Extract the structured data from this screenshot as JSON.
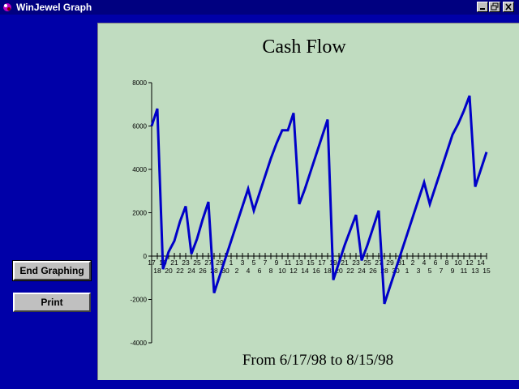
{
  "window": {
    "title": "WinJewel Graph",
    "controls": [
      "minimize",
      "restore",
      "close"
    ]
  },
  "buttons": {
    "end_graphing": "End Graphing",
    "print": "Print"
  },
  "colors": {
    "desktop": "#0000a8",
    "plot_background": "#c0dcc0",
    "line": "#0000c8"
  },
  "chart_data": {
    "type": "line",
    "title": "Cash Flow",
    "subtitle": "From 6/17/98 to 8/15/98",
    "ylim": [
      -4000,
      8000
    ],
    "yticks": [
      -4000,
      -2000,
      0,
      2000,
      4000,
      6000,
      8000
    ],
    "ytick_labels": [
      "-4000",
      "-2000",
      "0",
      "2000",
      "4000",
      "6000",
      "8000"
    ],
    "x_tick_labels": [
      "17",
      "18",
      "19",
      "20",
      "21",
      "22",
      "23",
      "24",
      "25",
      "26",
      "27",
      "28",
      "29",
      "30",
      "1",
      "2",
      "3",
      "4",
      "5",
      "6",
      "7",
      "8",
      "9",
      "10",
      "11",
      "12",
      "13",
      "14",
      "15",
      "16",
      "17",
      "18",
      "19",
      "20",
      "21",
      "22",
      "23",
      "24",
      "25",
      "26",
      "27",
      "28",
      "29",
      "30",
      "31",
      "1",
      "2",
      "3",
      "4",
      "5",
      "6",
      "7",
      "8",
      "9",
      "10",
      "11",
      "12",
      "13",
      "14",
      "15"
    ],
    "x": [
      "6/17",
      "6/18",
      "6/19",
      "6/20",
      "6/21",
      "6/22",
      "6/23",
      "6/24",
      "6/25",
      "6/26",
      "6/27",
      "6/28",
      "6/29",
      "6/30",
      "7/1",
      "7/2",
      "7/3",
      "7/4",
      "7/5",
      "7/6",
      "7/7",
      "7/8",
      "7/9",
      "7/10",
      "7/11",
      "7/12",
      "7/13",
      "7/14",
      "7/15",
      "7/16",
      "7/17",
      "7/18",
      "7/19",
      "7/20",
      "7/21",
      "7/22",
      "7/23",
      "7/24",
      "7/25",
      "7/26",
      "7/27",
      "7/28",
      "7/29",
      "7/30",
      "7/31",
      "8/1",
      "8/2",
      "8/3",
      "8/4",
      "8/5",
      "8/6",
      "8/7",
      "8/8",
      "8/9",
      "8/10",
      "8/11",
      "8/12",
      "8/13",
      "8/14",
      "8/15"
    ],
    "series": [
      {
        "values": [
          6000,
          6800,
          -600,
          200,
          700,
          1600,
          2300,
          100,
          800,
          1700,
          2500,
          -1700,
          -900,
          -100,
          700,
          1500,
          2300,
          3100,
          2100,
          2900,
          3700,
          4500,
          5200,
          5800,
          5800,
          6600,
          2400,
          3100,
          3900,
          4700,
          5500,
          6300,
          -1100,
          -300,
          500,
          1200,
          1900,
          -200,
          500,
          1300,
          2100,
          -2200,
          -1400,
          -600,
          200,
          1000,
          1800,
          2600,
          3400,
          2400,
          3200,
          4000,
          4800,
          5600,
          6100,
          6700,
          7400,
          3200,
          4000,
          4800
        ]
      }
    ]
  }
}
